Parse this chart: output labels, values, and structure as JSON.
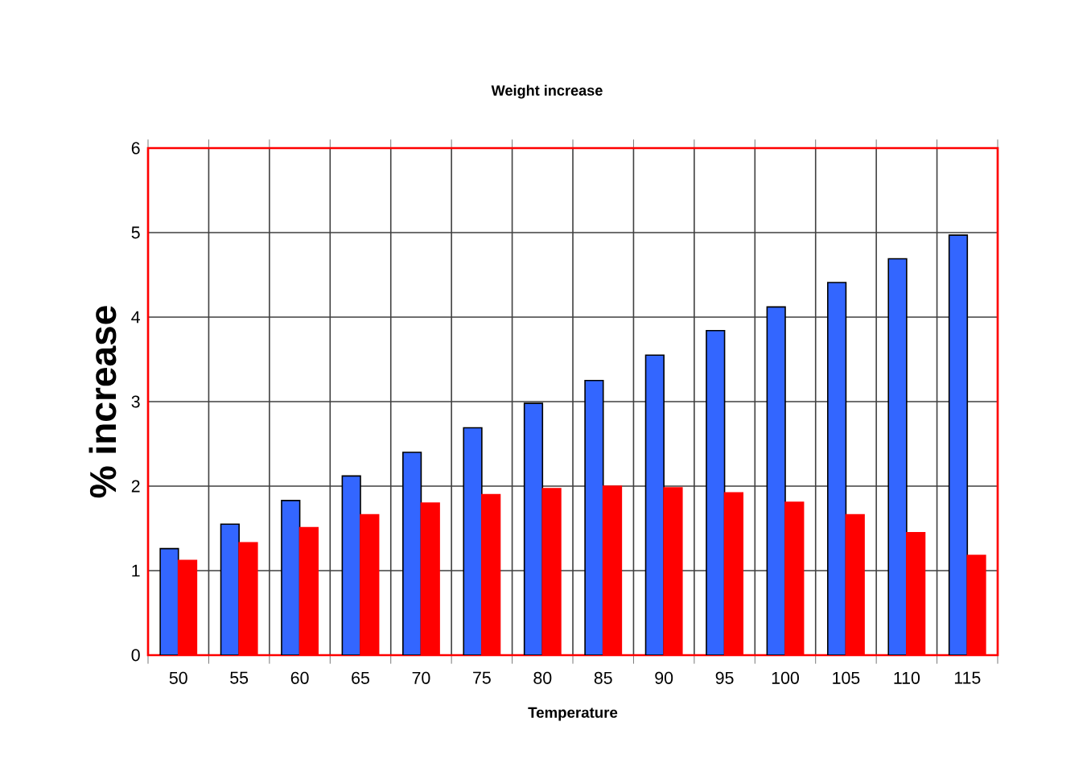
{
  "chart_data": {
    "type": "bar",
    "title": "Weight increase",
    "xlabel": "Temperature",
    "ylabel": "% increase",
    "categories": [
      "50",
      "55",
      "60",
      "65",
      "70",
      "75",
      "80",
      "85",
      "90",
      "95",
      "100",
      "105",
      "110",
      "115"
    ],
    "series": [
      {
        "color": "#3366ff",
        "values": [
          1.26,
          1.55,
          1.83,
          2.12,
          2.4,
          2.69,
          2.98,
          3.25,
          3.55,
          3.84,
          4.12,
          4.41,
          4.69,
          4.97
        ]
      },
      {
        "color": "#ff0000",
        "values": [
          1.12,
          1.33,
          1.51,
          1.66,
          1.8,
          1.9,
          1.97,
          2.0,
          1.98,
          1.92,
          1.81,
          1.66,
          1.45,
          1.18
        ]
      }
    ],
    "ylim": [
      0,
      6
    ],
    "yticks": [
      0,
      1,
      2,
      3,
      4,
      5,
      6
    ],
    "grid": true
  }
}
